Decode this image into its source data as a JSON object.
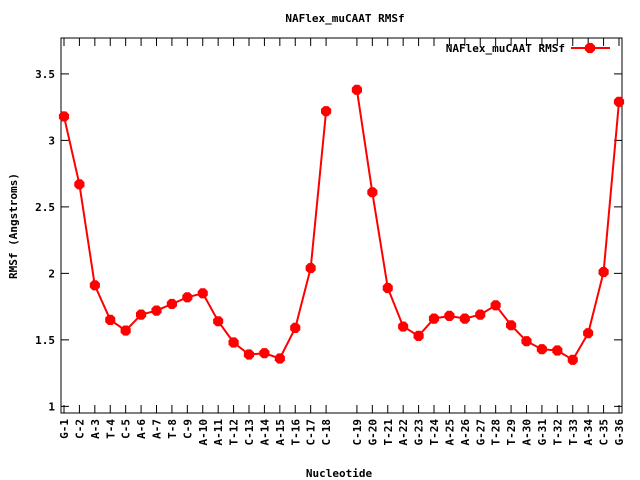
{
  "chart_data": {
    "type": "line",
    "title": "NAFlex_muCAAT RMSf",
    "xlabel": "Nucleotide",
    "ylabel": "RMSf (Angstroms)",
    "ylim": [
      0.95,
      3.77
    ],
    "yticks": [
      1,
      1.5,
      2,
      2.5,
      3,
      3.5
    ],
    "ytick_labels": [
      "1",
      "1.5",
      "2",
      "2.5",
      "3",
      "3.5"
    ],
    "grid": false,
    "legend_position": "top-right",
    "series": [
      {
        "name": "NAFlex_muCAAT RMSf",
        "color": "#ff0000",
        "strands": [
          {
            "x": [
              1,
              2,
              3,
              4,
              5,
              6,
              7,
              8,
              9,
              10,
              11,
              12,
              13,
              14,
              15,
              16,
              17,
              18
            ],
            "labels": [
              "G-1",
              "C-2",
              "A-3",
              "T-4",
              "C-5",
              "A-6",
              "A-7",
              "T-8",
              "C-9",
              "A-10",
              "A-11",
              "T-12",
              "C-13",
              "A-14",
              "A-15",
              "T-16",
              "C-17",
              "C-18"
            ],
            "values": [
              3.18,
              2.67,
              1.91,
              1.65,
              1.57,
              1.69,
              1.72,
              1.77,
              1.82,
              1.85,
              1.64,
              1.48,
              1.39,
              1.4,
              1.36,
              1.59,
              2.04,
              3.22
            ]
          },
          {
            "x": [
              20,
              21,
              22,
              23,
              24,
              25,
              26,
              27,
              28,
              29,
              30,
              31,
              32,
              33,
              34,
              35,
              36,
              37
            ],
            "labels": [
              "C-19",
              "G-20",
              "T-21",
              "A-22",
              "G-23",
              "T-24",
              "A-25",
              "A-26",
              "G-27",
              "T-28",
              "T-29",
              "A-30",
              "G-31",
              "T-32",
              "T-33",
              "A-34",
              "C-35",
              "G-36"
            ],
            "values": [
              3.38,
              2.61,
              1.89,
              1.6,
              1.53,
              1.66,
              1.68,
              1.66,
              1.69,
              1.76,
              1.61,
              1.49,
              1.43,
              1.42,
              1.35,
              1.55,
              2.01,
              3.29
            ]
          }
        ]
      }
    ]
  }
}
